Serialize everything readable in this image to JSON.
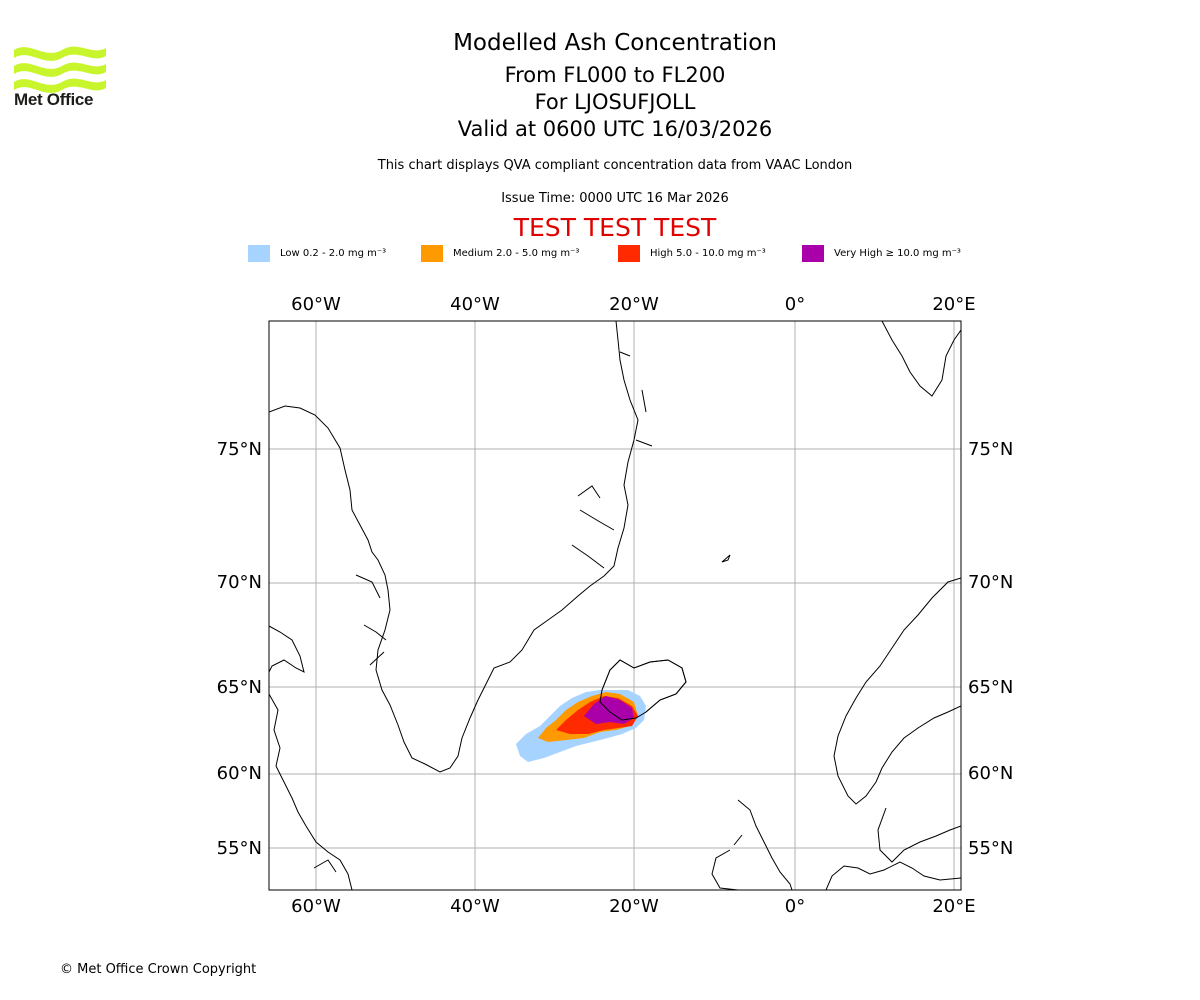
{
  "brand": {
    "logo_text": "Met Office"
  },
  "header": {
    "title": "Modelled Ash Concentration",
    "levels": "From FL000 to FL200",
    "volcano": "For LJOSUFJOLL",
    "valid": "Valid at 0600 UTC 16/03/2026",
    "description": "This chart displays QVA compliant concentration data from VAAC London",
    "issue_time": "Issue Time: 0000 UTC 16 Mar 2026",
    "test_banner": "TEST TEST TEST"
  },
  "legend": [
    {
      "label": "Low 0.2 - 2.0 mg m⁻³",
      "color": "#a6d3ff"
    },
    {
      "label": "Medium 2.0 - 5.0 mg m⁻³",
      "color": "#ff9900"
    },
    {
      "label": "High 5.0 - 10.0 mg m⁻³",
      "color": "#ff2a00"
    },
    {
      "label": "Very High ≥ 10.0 mg m⁻³",
      "color": "#aa00aa"
    }
  ],
  "map": {
    "lon_labels": [
      "60°W",
      "40°W",
      "20°W",
      "0°",
      "20°E"
    ],
    "lat_labels": [
      "75°N",
      "70°N",
      "65°N",
      "60°N",
      "55°N"
    ],
    "grid_color": "#b0b0b0"
  },
  "footer": {
    "copyright": "© Met Office Crown Copyright"
  }
}
